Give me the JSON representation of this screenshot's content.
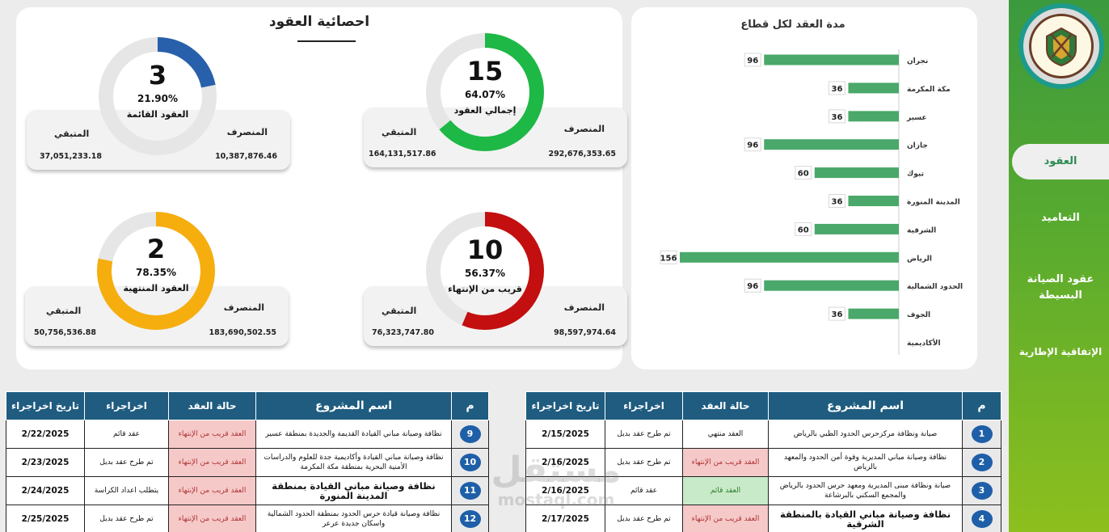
{
  "sidebar": {
    "nav": [
      {
        "label": "العقود",
        "active": true
      },
      {
        "label": "التعاميد",
        "active": false
      },
      {
        "label": "عقود الصيانة البسيطة",
        "active": false
      },
      {
        "label": "الإتفاقية الإطارية",
        "active": false
      }
    ]
  },
  "stats": {
    "title": "احصائية العقود",
    "spent_label": "المنصرف",
    "remaining_label": "المتبقي",
    "cards": [
      {
        "key": "total",
        "count": "15",
        "percent": "64.07%",
        "fraction": 0.6407,
        "name": "إجمالي العقود",
        "spent": "292,676,353.65",
        "remaining": "164,131,517.86",
        "color": "#1db845"
      },
      {
        "key": "running",
        "count": "3",
        "percent": "21.90%",
        "fraction": 0.219,
        "name": "العقود القائمة",
        "spent": "10,387,876.46",
        "remaining": "37,051,233.18",
        "color": "#2860ab"
      },
      {
        "key": "near",
        "count": "10",
        "percent": "56.37%",
        "fraction": 0.5637,
        "name": "قريب من الإنتهاء",
        "spent": "98,597,974.64",
        "remaining": "76,323,747.80",
        "color": "#c30f0f"
      },
      {
        "key": "ended",
        "count": "2",
        "percent": "78.35%",
        "fraction": 0.7835,
        "name": "العقود المنتهية",
        "spent": "183,690,502.55",
        "remaining": "50,756,536.88",
        "color": "#f5ae0d"
      }
    ]
  },
  "chart_data": {
    "type": "bar",
    "orientation": "horizontal",
    "title": "مدة العقد لكل قطاع",
    "categories": [
      "نجران",
      "مكة المكرمة",
      "عسير",
      "جازان",
      "تبوك",
      "المدينة المنورة",
      "الشرقية",
      "الرياض",
      "الحدود الشمالية",
      "الجوف",
      "الأكاديمية"
    ],
    "values": [
      96,
      36,
      36,
      96,
      60,
      36,
      60,
      156,
      96,
      36,
      null
    ],
    "bar_color": "#4aa86a",
    "data_labels": true,
    "grid": false
  },
  "table": {
    "headers": {
      "num": "م",
      "project": "اسم المشروع",
      "status": "حالة العقد",
      "action": "اخراجراء",
      "date": "تاريخ اخراجراء"
    },
    "right_rows": [
      {
        "num": "1",
        "project": "صيانة ونظافة مركزحرس الحدود الطبي بالرياض",
        "status": "العقد منتهي",
        "status_type": "ended",
        "action": "تم طرح عقد بديل",
        "date": "2/15/2025"
      },
      {
        "num": "2",
        "project": "نظافة وصيانة مباني المديرية وقوة أمن الحدود والمعهد بالرياض",
        "status": "العقد قريب من الإنتهاء",
        "status_type": "near",
        "action": "تم طرح عقد بديل",
        "date": "2/16/2025"
      },
      {
        "num": "3",
        "project": "صيانة ونظافة مبنى المديرية ومعهد حرس الحدود بالرياض والمجمع السكني بالبرشاعة",
        "status": "العقد قائم",
        "status_type": "running",
        "action": "عقد قائم",
        "date": "2/16/2025"
      },
      {
        "num": "4",
        "project": "نظافة وصيانة مباني القيادة بالمنطقة الشرقية",
        "status": "العقد قريب من الإنتهاء",
        "status_type": "near",
        "action": "تم طرح عقد بديل",
        "date": "2/17/2025",
        "bold": true
      }
    ],
    "left_rows": [
      {
        "num": "9",
        "project": "نظافة وصيانة مباني القيادة القديمة والجديدة بمنطقة عسير",
        "status": "العقد قريب من الإنتهاء",
        "status_type": "near",
        "action": "عقد قائم",
        "date": "2/22/2025"
      },
      {
        "num": "10",
        "project": "نظافة وصيانة مباني القيادة وأكاديمية جدة للعلوم والدراسات الأمنية البحرية بمنطقة مكة المكرمة",
        "status": "العقد قريب من الإنتهاء",
        "status_type": "near",
        "action": "تم طرح عقد بديل",
        "date": "2/23/2025"
      },
      {
        "num": "11",
        "project": "نظافة وصيانة مباني القيادة بمنطقة المدينة المنورة",
        "status": "العقد قريب من الإنتهاء",
        "status_type": "near",
        "action": "يتطلب اعداد الكراسة",
        "date": "2/24/2025",
        "bold": true
      },
      {
        "num": "12",
        "project": "نظافة وصيانة قيادة حرس الحدود بمنطقة الحدود الشمالية واسكان جديدة عرعر",
        "status": "العقد قريب من الإنتهاء",
        "status_type": "near",
        "action": "تم طرح عقد بديل",
        "date": "2/25/2025"
      }
    ]
  },
  "watermark": {
    "arabic": "مستقل",
    "latin": "mostaql.com"
  }
}
